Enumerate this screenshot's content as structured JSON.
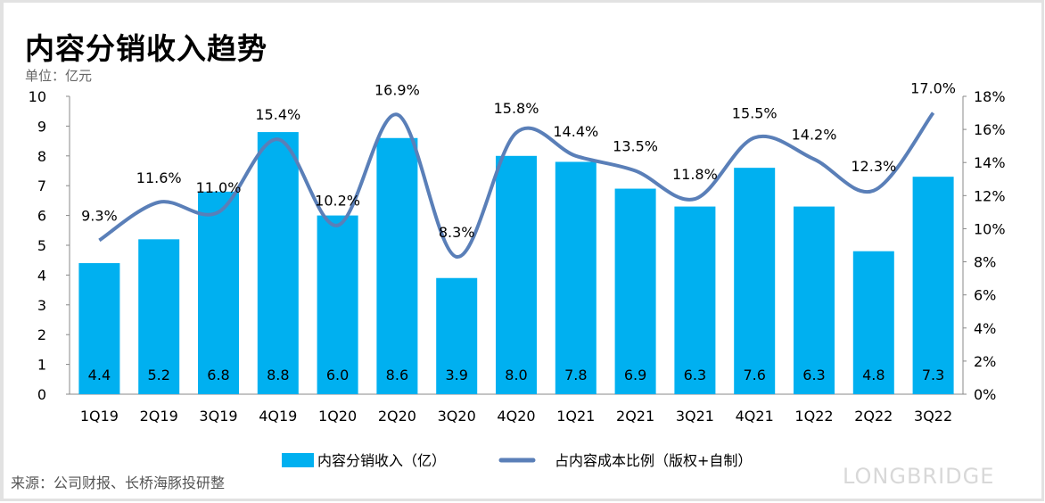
{
  "title": "内容分销收入趋势",
  "unit": "单位：亿元",
  "source": "来源：公司财报、长桥海豚投研整",
  "watermark": "LONGBRIDGE",
  "chart_data": {
    "type": "bar+line",
    "categories": [
      "1Q19",
      "2Q19",
      "3Q19",
      "4Q19",
      "1Q20",
      "2Q20",
      "3Q20",
      "4Q20",
      "1Q21",
      "2Q21",
      "3Q21",
      "4Q21",
      "1Q22",
      "2Q22",
      "3Q22"
    ],
    "series": [
      {
        "name": "内容分销收入（亿）",
        "type": "bar",
        "axis": "left",
        "color": "#00b0f0",
        "values": [
          4.4,
          5.2,
          6.8,
          8.8,
          6.0,
          8.6,
          3.9,
          8.0,
          7.8,
          6.9,
          6.3,
          7.6,
          6.3,
          4.8,
          7.3
        ],
        "labels": [
          "4.4",
          "5.2",
          "6.8",
          "8.8",
          "6.0",
          "8.6",
          "3.9",
          "8.0",
          "7.8",
          "6.9",
          "6.3",
          "7.6",
          "6.3",
          "4.8",
          "7.3"
        ]
      },
      {
        "name": "占内容成本比例（版权+自制）",
        "type": "line",
        "axis": "right",
        "color": "#5a7fb8",
        "values": [
          9.3,
          11.6,
          11.0,
          15.4,
          10.2,
          16.9,
          8.3,
          15.8,
          14.4,
          13.5,
          11.8,
          15.5,
          14.2,
          12.3,
          17.0
        ],
        "labels": [
          "9.3%",
          "11.6%",
          "11.0%",
          "15.4%",
          "10.2%",
          "16.9%",
          "8.3%",
          "15.8%",
          "14.4%",
          "13.5%",
          "11.8%",
          "15.5%",
          "14.2%",
          "12.3%",
          "17.0%"
        ]
      }
    ],
    "yleft": {
      "lim": [
        0,
        10
      ],
      "ticks": [
        "0",
        "1",
        "2",
        "3",
        "4",
        "5",
        "6",
        "7",
        "8",
        "9",
        "10"
      ]
    },
    "yright": {
      "lim": [
        0,
        18
      ],
      "ticks": [
        "0%",
        "2%",
        "4%",
        "6%",
        "8%",
        "10%",
        "12%",
        "14%",
        "16%",
        "18%"
      ]
    },
    "legend": "bottom",
    "grid": false
  }
}
